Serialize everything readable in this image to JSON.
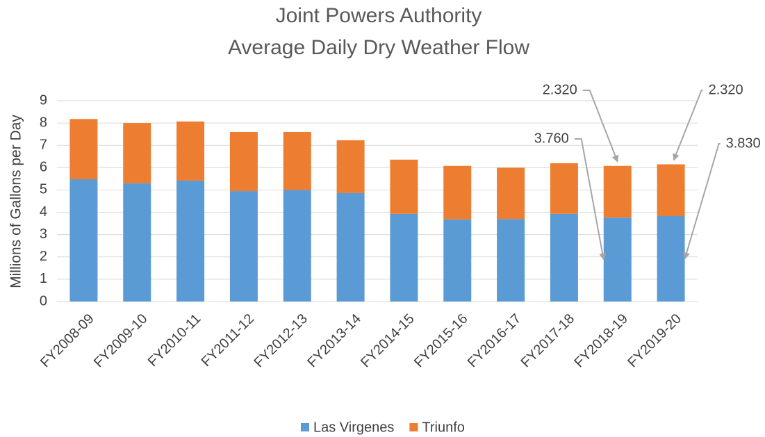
{
  "chart_data": {
    "type": "stacked_bar",
    "title": [
      "Joint Powers Authority",
      "Average Daily Dry Weather Flow"
    ],
    "y_label": "Millions of Gallons per Day",
    "categories": [
      "FY2008-09",
      "FY2009-10",
      "FY2010-11",
      "FY2011-12",
      "FY2012-13",
      "FY2013-14",
      "FY2014-15",
      "FY2015-16",
      "FY2016-17",
      "FY2017-18",
      "FY2018-19",
      "FY2019-20"
    ],
    "series": [
      {
        "name": "Las Virgenes",
        "color": "#5b9bd5",
        "values": [
          5.48,
          5.3,
          5.42,
          4.95,
          5.0,
          4.86,
          3.93,
          3.68,
          3.7,
          3.93,
          3.76,
          3.83
        ],
        "value_labels": [
          null,
          null,
          null,
          null,
          null,
          null,
          null,
          null,
          null,
          null,
          "3.760",
          "3.830"
        ]
      },
      {
        "name": "Triunfo",
        "color": "#ed7d31",
        "values": [
          2.7,
          2.7,
          2.65,
          2.65,
          2.6,
          2.37,
          2.43,
          2.4,
          2.3,
          2.27,
          2.32,
          2.32
        ],
        "value_labels": [
          null,
          null,
          null,
          null,
          null,
          null,
          null,
          null,
          null,
          null,
          "2.320",
          "2.320"
        ]
      }
    ],
    "ylim": [
      0,
      9
    ],
    "yticks": [
      0,
      1,
      2,
      3,
      4,
      5,
      6,
      7,
      8,
      9
    ],
    "grid": true,
    "legend": "bottom"
  }
}
